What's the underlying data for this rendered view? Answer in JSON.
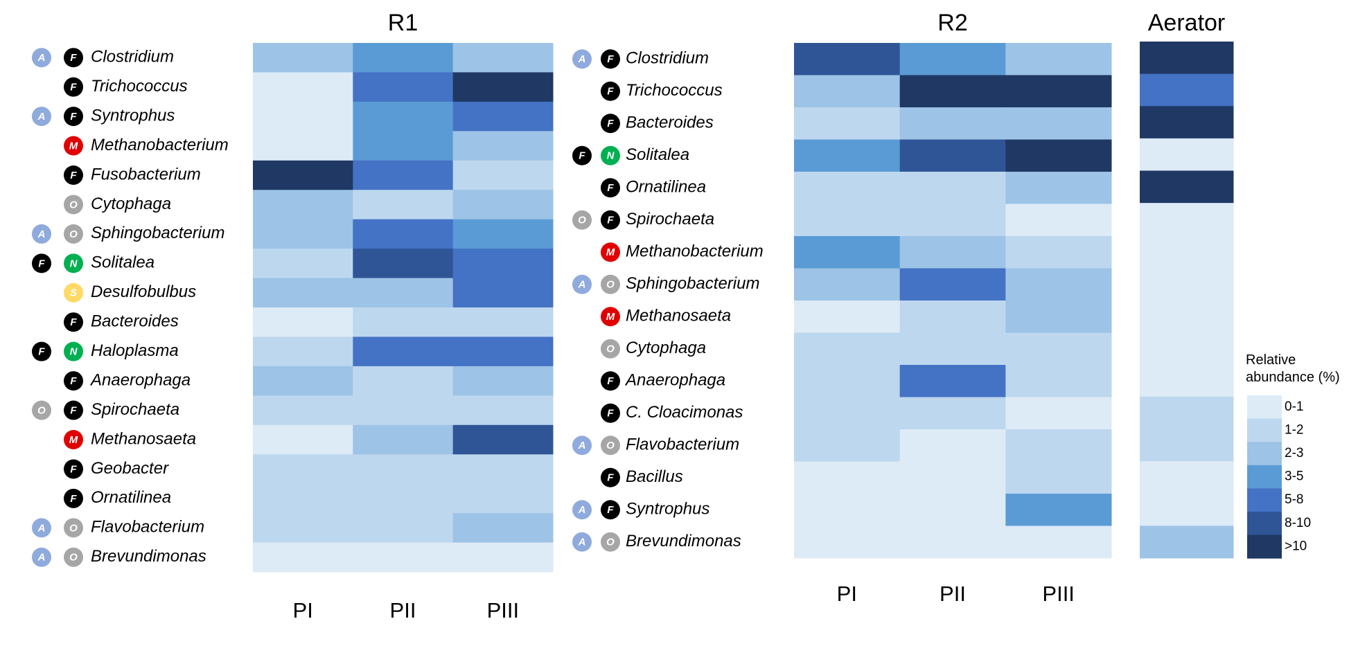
{
  "chart_data": [
    {
      "type": "heatmap",
      "title": "R1",
      "columns": [
        "PI",
        "PII",
        "PIII"
      ],
      "rows": [
        {
          "label": "Clostridium",
          "badges": [
            "A",
            "F"
          ]
        },
        {
          "label": "Trichococcus",
          "badges": [
            "F"
          ]
        },
        {
          "label": "Syntrophus",
          "badges": [
            "A",
            "F"
          ]
        },
        {
          "label": "Methanobacterium",
          "badges": [
            "M"
          ]
        },
        {
          "label": "Fusobacterium",
          "badges": [
            "F"
          ]
        },
        {
          "label": "Cytophaga",
          "badges": [
            "O"
          ]
        },
        {
          "label": "Sphingobacterium",
          "badges": [
            "A",
            "O"
          ]
        },
        {
          "label": "Solitalea",
          "badges": [
            "F",
            "N"
          ]
        },
        {
          "label": "Desulfobulbus",
          "badges": [
            "S"
          ]
        },
        {
          "label": "Bacteroides",
          "badges": [
            "F"
          ]
        },
        {
          "label": "Haloplasma",
          "badges": [
            "F",
            "N"
          ]
        },
        {
          "label": "Anaerophaga",
          "badges": [
            "F"
          ]
        },
        {
          "label": "Spirochaeta",
          "badges": [
            "O",
            "F"
          ]
        },
        {
          "label": "Methanosaeta",
          "badges": [
            "M"
          ]
        },
        {
          "label": "Geobacter",
          "badges": [
            "F"
          ]
        },
        {
          "label": "Ornatilinea",
          "badges": [
            "F"
          ]
        },
        {
          "label": "Flavobacterium",
          "badges": [
            "A",
            "O"
          ]
        },
        {
          "label": "Brevundimonas",
          "badges": [
            "A",
            "O"
          ]
        }
      ],
      "values": [
        [
          2.5,
          4,
          2.5
        ],
        [
          0.5,
          6.5,
          12
        ],
        [
          0.5,
          4,
          6.5
        ],
        [
          0.5,
          4,
          2.5
        ],
        [
          12,
          6.5,
          1.5
        ],
        [
          2.5,
          1.5,
          2.5
        ],
        [
          2.5,
          6.5,
          4
        ],
        [
          1.5,
          9,
          6.5
        ],
        [
          2.5,
          2.5,
          6.5
        ],
        [
          0.5,
          1.5,
          1.5
        ],
        [
          1.5,
          6.5,
          6.5
        ],
        [
          2.5,
          1.5,
          2.5
        ],
        [
          1.5,
          1.5,
          1.5
        ],
        [
          0.5,
          2.5,
          9
        ],
        [
          1.5,
          1.5,
          1.5
        ],
        [
          1.5,
          1.5,
          1.5
        ],
        [
          1.5,
          1.5,
          2.5
        ],
        [
          0.5,
          0.5,
          0.5
        ]
      ]
    },
    {
      "type": "heatmap",
      "title": "R2",
      "columns": [
        "PI",
        "PII",
        "PIII"
      ],
      "rows": [
        {
          "label": "Clostridium",
          "badges": [
            "A",
            "F"
          ]
        },
        {
          "label": "Trichococcus",
          "badges": [
            "F"
          ]
        },
        {
          "label": "Bacteroides",
          "badges": [
            "F"
          ]
        },
        {
          "label": "Solitalea",
          "badges": [
            "F",
            "N"
          ]
        },
        {
          "label": "Ornatilinea",
          "badges": [
            "F"
          ]
        },
        {
          "label": "Spirochaeta",
          "badges": [
            "O",
            "F"
          ]
        },
        {
          "label": "Methanobacterium",
          "badges": [
            "M"
          ]
        },
        {
          "label": "Sphingobacterium",
          "badges": [
            "A",
            "O"
          ]
        },
        {
          "label": "Methanosaeta",
          "badges": [
            "M"
          ]
        },
        {
          "label": "Cytophaga",
          "badges": [
            "O"
          ]
        },
        {
          "label": "Anaerophaga",
          "badges": [
            "F"
          ]
        },
        {
          "label": "C. Cloacimonas",
          "badges": [
            "F"
          ]
        },
        {
          "label": "Flavobacterium",
          "badges": [
            "A",
            "O"
          ]
        },
        {
          "label": "Bacillus",
          "badges": [
            "F"
          ]
        },
        {
          "label": "Syntrophus",
          "badges": [
            "A",
            "F"
          ]
        },
        {
          "label": "Brevundimonas",
          "badges": [
            "A",
            "O"
          ]
        }
      ],
      "values": [
        [
          9,
          4,
          2.5
        ],
        [
          2.5,
          12,
          12
        ],
        [
          1.5,
          2.5,
          2.5
        ],
        [
          4,
          9,
          12
        ],
        [
          1.5,
          1.5,
          2.5
        ],
        [
          1.5,
          1.5,
          0.5
        ],
        [
          4,
          2.5,
          1.5
        ],
        [
          2.5,
          6.5,
          2.5
        ],
        [
          0.5,
          1.5,
          2.5
        ],
        [
          1.5,
          1.5,
          1.5
        ],
        [
          1.5,
          6.5,
          1.5
        ],
        [
          1.5,
          1.5,
          0.5
        ],
        [
          1.5,
          0.5,
          1.5
        ],
        [
          0.5,
          0.5,
          1.5
        ],
        [
          0.5,
          0.5,
          4
        ],
        [
          0.5,
          0.5,
          0.5
        ]
      ]
    },
    {
      "type": "heatmap",
      "title": "Aerator",
      "columns": [
        null
      ],
      "values": [
        [
          12
        ],
        [
          6.5
        ],
        [
          12
        ],
        [
          0.5
        ],
        [
          12
        ],
        [
          0.5
        ],
        [
          0.5
        ],
        [
          0.5
        ],
        [
          0.5
        ],
        [
          0.5
        ],
        [
          0.5
        ],
        [
          1.5
        ],
        [
          1.5
        ],
        [
          0.5
        ],
        [
          0.5
        ],
        [
          2.5
        ]
      ]
    }
  ],
  "badge_colors": {
    "A": "#8faadc",
    "F": "#000000",
    "M": "#e00000",
    "O": "#a6a6a6",
    "N": "#00b050",
    "S": "#ffd966"
  },
  "legend": {
    "title": "Relative abundance (%)",
    "classes": [
      {
        "label": "0-1",
        "from": 0,
        "to": 1,
        "color": "#ddebf7"
      },
      {
        "label": "1-2",
        "from": 1,
        "to": 2,
        "color": "#bdd7ee"
      },
      {
        "label": "2-3",
        "from": 2,
        "to": 3,
        "color": "#9dc3e6"
      },
      {
        "label": "3-5",
        "from": 3,
        "to": 5,
        "color": "#5b9bd5"
      },
      {
        "label": "5-8",
        "from": 5,
        "to": 8,
        "color": "#4472c4"
      },
      {
        "label": "8-10",
        "from": 8,
        "to": 10,
        "color": "#2f5597"
      },
      {
        "label": ">10",
        "from": 10,
        "to": null,
        "color": "#1f3864"
      }
    ]
  }
}
